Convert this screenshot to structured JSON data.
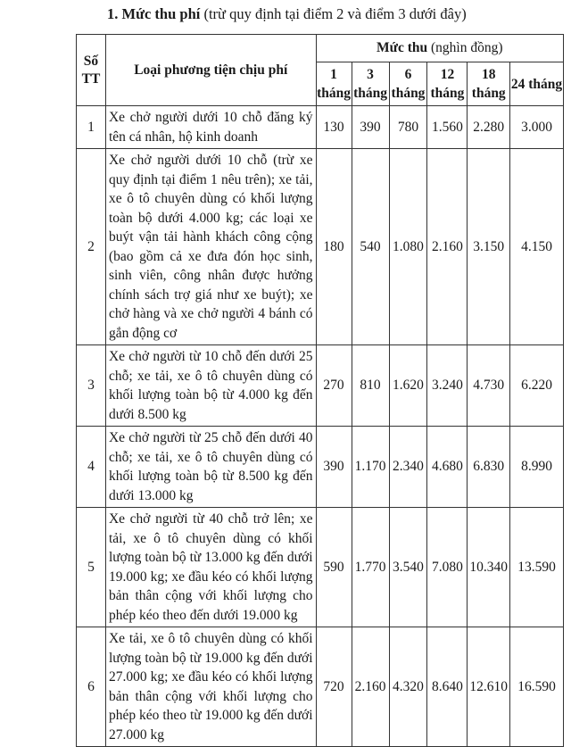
{
  "heading": {
    "bold": "1. Mức thu phí",
    "rest": " (trừ quy định tại điểm 2 và điểm 3 dưới đây)"
  },
  "table": {
    "col_stt": "Số TT",
    "col_type": "Loại phương tiện chịu phí",
    "col_fee_bold": "Mức thu",
    "col_fee_unit": " (nghìn đồng)",
    "periods": [
      "1 tháng",
      "3 tháng",
      "6 tháng",
      "12 tháng",
      "18 tháng",
      "24 tháng"
    ],
    "rows": [
      {
        "stt": "1",
        "desc": "Xe chở người dưới 10 chỗ đăng ký tên cá nhân, hộ kinh doanh",
        "fees": [
          "130",
          "390",
          "780",
          "1.560",
          "2.280",
          "3.000"
        ]
      },
      {
        "stt": "2",
        "desc": "Xe chở người dưới 10 chỗ (trừ xe quy định tại điểm 1 nêu trên); xe tải, xe ô tô chuyên dùng có khối lượng toàn bộ dưới 4.000 kg; các loại xe buýt vận tải hành khách công cộng (bao gồm cả xe đưa đón học sinh, sinh viên, công nhân được hưởng chính sách trợ giá như xe buýt); xe chở hàng và xe chở người 4 bánh có gắn động cơ",
        "fees": [
          "180",
          "540",
          "1.080",
          "2.160",
          "3.150",
          "4.150"
        ]
      },
      {
        "stt": "3",
        "desc": "Xe chở người từ 10 chỗ đến dưới 25 chỗ; xe tải, xe ô tô chuyên dùng có khối lượng toàn bộ từ 4.000 kg đến dưới 8.500 kg",
        "fees": [
          "270",
          "810",
          "1.620",
          "3.240",
          "4.730",
          "6.220"
        ]
      },
      {
        "stt": "4",
        "desc": "Xe chở người từ 25 chỗ đến dưới 40 chỗ; xe tải, xe ô tô chuyên dùng có khối lượng toàn bộ từ 8.500 kg đến dưới 13.000 kg",
        "fees": [
          "390",
          "1.170",
          "2.340",
          "4.680",
          "6.830",
          "8.990"
        ]
      },
      {
        "stt": "5",
        "desc": "Xe chở người từ 40 chỗ trở lên; xe tải, xe ô tô chuyên dùng có khối lượng toàn bộ từ 13.000 kg đến dưới 19.000 kg; xe đầu kéo có khối lượng bản thân cộng với khối lượng cho phép kéo theo đến dưới 19.000 kg",
        "fees": [
          "590",
          "1.770",
          "3.540",
          "7.080",
          "10.340",
          "13.590"
        ]
      },
      {
        "stt": "6",
        "desc": "Xe tải, xe ô tô chuyên dùng có khối lượng toàn bộ từ 19.000 kg đến dưới 27.000 kg; xe đầu kéo có khối lượng bản thân cộng với khối lượng cho phép kéo theo từ 19.000 kg đến dưới 27.000 kg",
        "fees": [
          "720",
          "2.160",
          "4.320",
          "8.640",
          "12.610",
          "16.590"
        ]
      }
    ]
  }
}
